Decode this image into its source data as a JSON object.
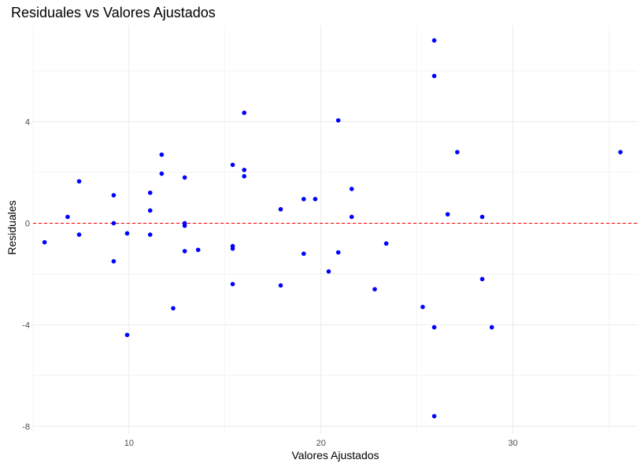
{
  "chart_data": {
    "type": "scatter",
    "title": "Residuales vs Valores Ajustados",
    "xlabel": "Valores Ajustados",
    "ylabel": "Residuales",
    "xlim": [
      5,
      36.5
    ],
    "ylim": [
      -8.3,
      7.8
    ],
    "x_ticks": [
      10,
      20,
      30
    ],
    "y_ticks": [
      -8,
      -4,
      0,
      4
    ],
    "x_minor": [
      5,
      15,
      25,
      35
    ],
    "y_minor": [
      -6,
      -2,
      2,
      6
    ],
    "grid": true,
    "reference_line": {
      "y": 0,
      "style": "dashed"
    },
    "colors": {
      "points": "#0000ff",
      "reference_line": "#ff0000",
      "grid": "#ebebeb"
    },
    "points": [
      {
        "x": 5.6,
        "y": -0.75
      },
      {
        "x": 6.8,
        "y": 0.25
      },
      {
        "x": 7.4,
        "y": 1.65
      },
      {
        "x": 7.4,
        "y": -0.45
      },
      {
        "x": 9.2,
        "y": 1.1
      },
      {
        "x": 9.2,
        "y": 0.0
      },
      {
        "x": 9.2,
        "y": -1.5
      },
      {
        "x": 9.9,
        "y": -0.4
      },
      {
        "x": 9.9,
        "y": -4.4
      },
      {
        "x": 11.1,
        "y": 1.2
      },
      {
        "x": 11.1,
        "y": 0.5
      },
      {
        "x": 11.1,
        "y": -0.45
      },
      {
        "x": 11.7,
        "y": 2.7
      },
      {
        "x": 11.7,
        "y": 1.95
      },
      {
        "x": 12.3,
        "y": -3.35
      },
      {
        "x": 12.9,
        "y": 1.8
      },
      {
        "x": 12.9,
        "y": 0.0
      },
      {
        "x": 12.9,
        "y": -0.1
      },
      {
        "x": 12.9,
        "y": -1.1
      },
      {
        "x": 13.6,
        "y": -1.05
      },
      {
        "x": 15.4,
        "y": 2.3
      },
      {
        "x": 15.4,
        "y": -0.9
      },
      {
        "x": 15.4,
        "y": -1.0
      },
      {
        "x": 15.4,
        "y": -2.4
      },
      {
        "x": 16.0,
        "y": 4.35
      },
      {
        "x": 16.0,
        "y": 2.1
      },
      {
        "x": 16.0,
        "y": 1.85
      },
      {
        "x": 17.9,
        "y": 0.55
      },
      {
        "x": 17.9,
        "y": -2.45
      },
      {
        "x": 19.1,
        "y": 0.95
      },
      {
        "x": 19.1,
        "y": -1.2
      },
      {
        "x": 19.7,
        "y": 0.95
      },
      {
        "x": 20.4,
        "y": -1.9
      },
      {
        "x": 20.9,
        "y": 4.05
      },
      {
        "x": 20.9,
        "y": -1.15
      },
      {
        "x": 21.6,
        "y": 1.35
      },
      {
        "x": 21.6,
        "y": 0.25
      },
      {
        "x": 22.8,
        "y": -2.6
      },
      {
        "x": 23.4,
        "y": -0.8
      },
      {
        "x": 25.3,
        "y": -3.3
      },
      {
        "x": 25.9,
        "y": 7.2
      },
      {
        "x": 25.9,
        "y": 5.8
      },
      {
        "x": 25.9,
        "y": -4.1
      },
      {
        "x": 25.9,
        "y": -7.6
      },
      {
        "x": 26.6,
        "y": 0.35
      },
      {
        "x": 27.1,
        "y": 2.8
      },
      {
        "x": 28.4,
        "y": 0.25
      },
      {
        "x": 28.4,
        "y": -2.2
      },
      {
        "x": 28.9,
        "y": -4.1
      },
      {
        "x": 35.6,
        "y": 2.8
      }
    ]
  }
}
